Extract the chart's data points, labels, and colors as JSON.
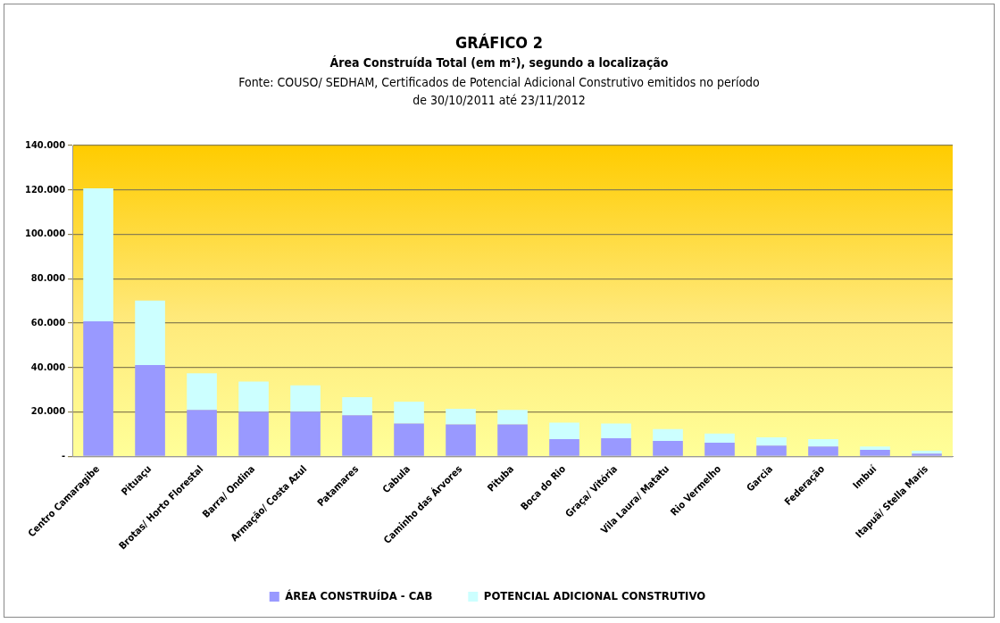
{
  "chart_data": {
    "type": "bar",
    "title": "GRÁFICO 2",
    "subtitle": "Área Construída Total (em m²), segundo a localização",
    "annotations": [
      "Fonte:  COUSO/ SEDHAM, Certificados de Potencial Adicional Construtivo emitidos no período de 30/10/2011 até 23/11/2012"
    ],
    "categories": [
      "Centro Camaragibe",
      "Pituaçu",
      "Brotas/ Horto Florestal",
      "Barra/ Ondina",
      "Armação/ Costa Azul",
      "Patamares",
      "Cabula",
      "Caminho das Árvores",
      "Pituba",
      "Boca do Rio",
      "Graça/ Vitória",
      "Vila Laura/ Matatu",
      "Rio Vermelho",
      "Garcia",
      "Federação",
      "Imbuí",
      "Itapuã/ Stella Maris"
    ],
    "series": [
      {
        "name": "ÁREA CONSTRUÍDA - CAB",
        "color": "#9999ff",
        "values": [
          60800,
          41100,
          20900,
          20100,
          20100,
          18500,
          14800,
          14400,
          14400,
          7800,
          8200,
          7000,
          6200,
          4900,
          4500,
          2900,
          1200
        ]
      },
      {
        "name": "POTENCIAL ADICIONAL CONSTRUTIVO",
        "color": "#ccffff",
        "values": [
          59900,
          29100,
          16500,
          13600,
          11900,
          8200,
          9800,
          7000,
          6500,
          7400,
          6600,
          5300,
          4100,
          3700,
          3300,
          1600,
          1300
        ]
      }
    ],
    "stacked": true,
    "ylim": [
      0,
      140000
    ],
    "yticks": [
      {
        "value": 0,
        "label": "-"
      },
      {
        "value": 20000,
        "label": "20.000"
      },
      {
        "value": 40000,
        "label": "40.000"
      },
      {
        "value": 60000,
        "label": "60.000"
      },
      {
        "value": 80000,
        "label": "80.000"
      },
      {
        "value": 100000,
        "label": "100.000"
      },
      {
        "value": 120000,
        "label": "120.000"
      },
      {
        "value": 140000,
        "label": "140.000"
      }
    ],
    "grid": "y",
    "legend": "bottom"
  }
}
